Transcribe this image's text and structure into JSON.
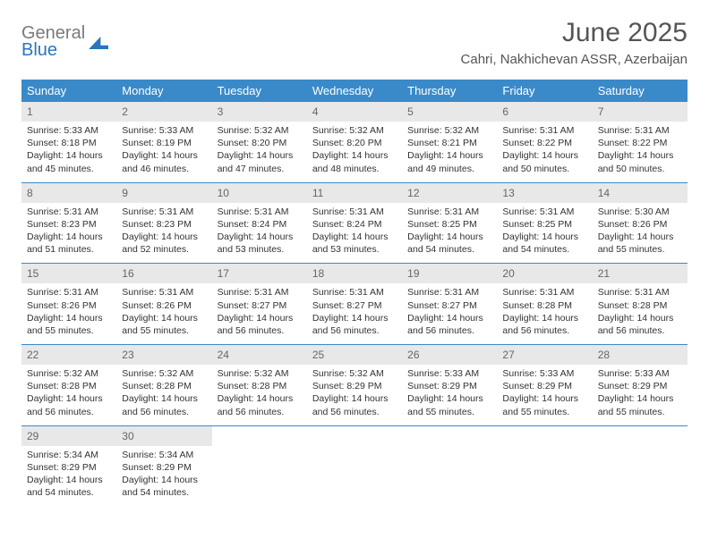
{
  "logo": {
    "line1": "General",
    "line2": "Blue"
  },
  "title": "June 2025",
  "location": "Cahri, Nakhichevan ASSR, Azerbaijan",
  "colors": {
    "header_bg": "#3a8ac9",
    "header_text": "#ffffff",
    "day_band_bg": "#e8e8e8",
    "row_border": "#3a8ac9",
    "logo_gray": "#7a7a7a",
    "logo_blue": "#2976bb"
  },
  "weekdays": [
    "Sunday",
    "Monday",
    "Tuesday",
    "Wednesday",
    "Thursday",
    "Friday",
    "Saturday"
  ],
  "weeks": [
    [
      {
        "d": "1",
        "sr": "5:33 AM",
        "ss": "8:18 PM",
        "dl": "14 hours and 45 minutes."
      },
      {
        "d": "2",
        "sr": "5:33 AM",
        "ss": "8:19 PM",
        "dl": "14 hours and 46 minutes."
      },
      {
        "d": "3",
        "sr": "5:32 AM",
        "ss": "8:20 PM",
        "dl": "14 hours and 47 minutes."
      },
      {
        "d": "4",
        "sr": "5:32 AM",
        "ss": "8:20 PM",
        "dl": "14 hours and 48 minutes."
      },
      {
        "d": "5",
        "sr": "5:32 AM",
        "ss": "8:21 PM",
        "dl": "14 hours and 49 minutes."
      },
      {
        "d": "6",
        "sr": "5:31 AM",
        "ss": "8:22 PM",
        "dl": "14 hours and 50 minutes."
      },
      {
        "d": "7",
        "sr": "5:31 AM",
        "ss": "8:22 PM",
        "dl": "14 hours and 50 minutes."
      }
    ],
    [
      {
        "d": "8",
        "sr": "5:31 AM",
        "ss": "8:23 PM",
        "dl": "14 hours and 51 minutes."
      },
      {
        "d": "9",
        "sr": "5:31 AM",
        "ss": "8:23 PM",
        "dl": "14 hours and 52 minutes."
      },
      {
        "d": "10",
        "sr": "5:31 AM",
        "ss": "8:24 PM",
        "dl": "14 hours and 53 minutes."
      },
      {
        "d": "11",
        "sr": "5:31 AM",
        "ss": "8:24 PM",
        "dl": "14 hours and 53 minutes."
      },
      {
        "d": "12",
        "sr": "5:31 AM",
        "ss": "8:25 PM",
        "dl": "14 hours and 54 minutes."
      },
      {
        "d": "13",
        "sr": "5:31 AM",
        "ss": "8:25 PM",
        "dl": "14 hours and 54 minutes."
      },
      {
        "d": "14",
        "sr": "5:30 AM",
        "ss": "8:26 PM",
        "dl": "14 hours and 55 minutes."
      }
    ],
    [
      {
        "d": "15",
        "sr": "5:31 AM",
        "ss": "8:26 PM",
        "dl": "14 hours and 55 minutes."
      },
      {
        "d": "16",
        "sr": "5:31 AM",
        "ss": "8:26 PM",
        "dl": "14 hours and 55 minutes."
      },
      {
        "d": "17",
        "sr": "5:31 AM",
        "ss": "8:27 PM",
        "dl": "14 hours and 56 minutes."
      },
      {
        "d": "18",
        "sr": "5:31 AM",
        "ss": "8:27 PM",
        "dl": "14 hours and 56 minutes."
      },
      {
        "d": "19",
        "sr": "5:31 AM",
        "ss": "8:27 PM",
        "dl": "14 hours and 56 minutes."
      },
      {
        "d": "20",
        "sr": "5:31 AM",
        "ss": "8:28 PM",
        "dl": "14 hours and 56 minutes."
      },
      {
        "d": "21",
        "sr": "5:31 AM",
        "ss": "8:28 PM",
        "dl": "14 hours and 56 minutes."
      }
    ],
    [
      {
        "d": "22",
        "sr": "5:32 AM",
        "ss": "8:28 PM",
        "dl": "14 hours and 56 minutes."
      },
      {
        "d": "23",
        "sr": "5:32 AM",
        "ss": "8:28 PM",
        "dl": "14 hours and 56 minutes."
      },
      {
        "d": "24",
        "sr": "5:32 AM",
        "ss": "8:28 PM",
        "dl": "14 hours and 56 minutes."
      },
      {
        "d": "25",
        "sr": "5:32 AM",
        "ss": "8:29 PM",
        "dl": "14 hours and 56 minutes."
      },
      {
        "d": "26",
        "sr": "5:33 AM",
        "ss": "8:29 PM",
        "dl": "14 hours and 55 minutes."
      },
      {
        "d": "27",
        "sr": "5:33 AM",
        "ss": "8:29 PM",
        "dl": "14 hours and 55 minutes."
      },
      {
        "d": "28",
        "sr": "5:33 AM",
        "ss": "8:29 PM",
        "dl": "14 hours and 55 minutes."
      }
    ],
    [
      {
        "d": "29",
        "sr": "5:34 AM",
        "ss": "8:29 PM",
        "dl": "14 hours and 54 minutes."
      },
      {
        "d": "30",
        "sr": "5:34 AM",
        "ss": "8:29 PM",
        "dl": "14 hours and 54 minutes."
      },
      null,
      null,
      null,
      null,
      null
    ]
  ],
  "labels": {
    "sunrise": "Sunrise:",
    "sunset": "Sunset:",
    "daylight": "Daylight:"
  }
}
